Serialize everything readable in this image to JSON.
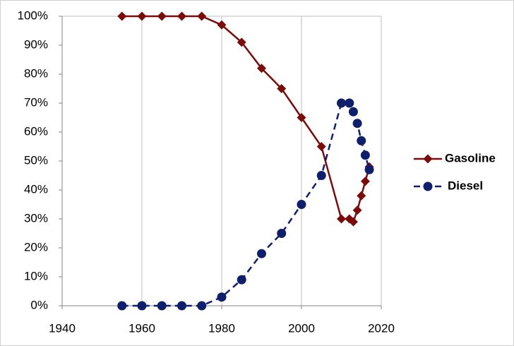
{
  "chart_data": {
    "type": "line",
    "series": [
      {
        "name": "Gasoline",
        "color": "#7b0c0c",
        "marker": "diamond",
        "dashed": false,
        "x": [
          1955,
          1960,
          1965,
          1970,
          1975,
          1980,
          1985,
          1990,
          1995,
          2000,
          2005,
          2010,
          2012,
          2013,
          2014,
          2015,
          2016,
          2017
        ],
        "values": [
          100,
          100,
          100,
          100,
          100,
          97,
          91,
          82,
          75,
          65,
          55,
          30,
          30,
          29,
          33,
          38,
          43,
          48
        ]
      },
      {
        "name": "Diesel",
        "color": "#0f1f6b",
        "marker": "circle",
        "dashed": true,
        "x": [
          1955,
          1960,
          1965,
          1970,
          1975,
          1980,
          1985,
          1990,
          1995,
          2000,
          2005,
          2010,
          2012,
          2013,
          2014,
          2015,
          2016,
          2017
        ],
        "values": [
          0,
          0,
          0,
          0,
          0,
          3,
          9,
          18,
          25,
          35,
          45,
          70,
          70,
          67,
          63,
          57,
          52,
          47
        ]
      }
    ],
    "xlim": [
      1940,
      2020
    ],
    "xticks": [
      1940,
      1960,
      1980,
      2000,
      2020
    ],
    "ylim": [
      0,
      100
    ],
    "yticks": [
      {
        "value": 0,
        "label": "0%"
      },
      {
        "value": 10,
        "label": "10%"
      },
      {
        "value": 20,
        "label": "20%"
      },
      {
        "value": 30,
        "label": "30%"
      },
      {
        "value": 40,
        "label": "40%"
      },
      {
        "value": 50,
        "label": "50%"
      },
      {
        "value": 60,
        "label": "60%"
      },
      {
        "value": 70,
        "label": "70%"
      },
      {
        "value": 80,
        "label": "80%"
      },
      {
        "value": 90,
        "label": "90%"
      },
      {
        "value": 100,
        "label": "100%"
      }
    ],
    "grid": "x",
    "legend": "right"
  }
}
